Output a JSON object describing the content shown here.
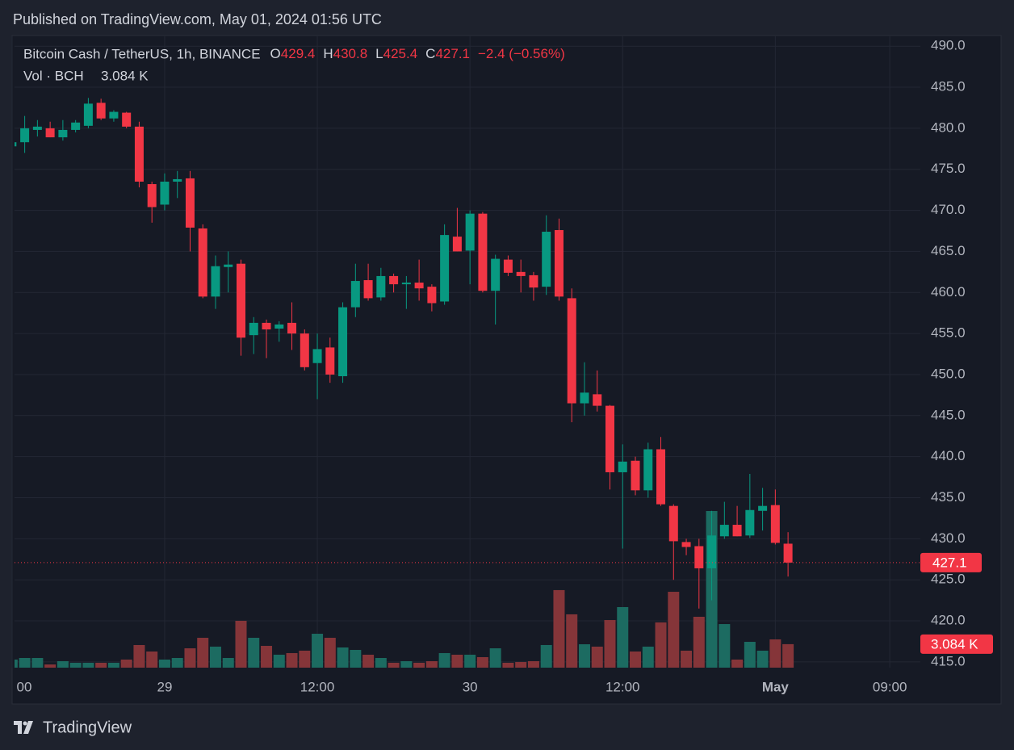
{
  "published": "Published on TradingView.com, May 01, 2024 01:56 UTC",
  "brand": "TradingView",
  "chart_data": {
    "type": "candlestick",
    "symbol": "Bitcoin Cash / TetherUS, 1h, BINANCE",
    "ohlc_legend": [
      {
        "label": "O",
        "value": 429.4
      },
      {
        "label": "H",
        "value": 430.8
      },
      {
        "label": "L",
        "value": 425.4
      },
      {
        "label": "C",
        "value": 427.1
      }
    ],
    "change": "−2.4 (−0.56%)",
    "volume_legend": {
      "label": "Vol · BCH",
      "value": 3084,
      "value_label": "3.084 K"
    },
    "last_price": 427.1,
    "up_color": "#089981",
    "down_color": "#f23645",
    "volume_up_color": "#1c6b61",
    "volume_down_color": "#853539",
    "open": [
      477.8,
      478.3,
      479.8,
      480.0,
      478.9,
      479.8,
      480.3,
      483.1,
      481.2,
      481.9,
      480.2,
      473.2,
      470.7,
      473.5,
      473.9,
      467.8,
      459.5,
      463.1,
      463.5,
      454.8,
      456.3,
      455.6,
      456.3,
      455.0,
      451.4,
      453.3,
      449.8,
      458.2,
      461.5,
      459.4,
      462.0,
      461.0,
      461.2,
      460.7,
      458.9,
      466.8,
      465.1,
      469.6,
      460.2,
      464.0,
      462.5,
      462.1,
      460.7,
      467.6,
      459.3,
      446.5,
      447.6,
      446.2,
      438.1,
      439.5,
      435.9,
      440.9,
      434.0,
      429.6,
      429.1,
      426.4,
      430.3,
      431.7,
      430.4,
      433.4,
      434.1,
      429.4
    ],
    "high": [
      478.5,
      481.5,
      481.0,
      480.8,
      481.0,
      481.0,
      483.7,
      483.6,
      482.2,
      482.0,
      480.8,
      473.5,
      474.5,
      474.8,
      474.8,
      468.3,
      464.5,
      465.0,
      464.0,
      457.0,
      456.7,
      456.5,
      458.8,
      455.5,
      455.0,
      454.5,
      458.8,
      463.5,
      463.5,
      463.0,
      462.3,
      462.0,
      464.0,
      461.0,
      468.3,
      470.3,
      470.0,
      469.8,
      464.6,
      464.5,
      464.0,
      462.5,
      469.4,
      469.0,
      460.5,
      451.5,
      450.5,
      446.3,
      441.5,
      440.0,
      441.7,
      442.4,
      434.2,
      430.0,
      430.0,
      433.4,
      434.5,
      434.0,
      437.9,
      436.2,
      436.0,
      430.8
    ],
    "low": [
      477.5,
      477.0,
      479.0,
      478.9,
      478.5,
      479.5,
      480.0,
      481.0,
      480.8,
      480.0,
      472.8,
      468.5,
      470.0,
      471.5,
      465.0,
      459.3,
      458.0,
      460.0,
      452.3,
      452.5,
      452.0,
      454.0,
      453.0,
      450.5,
      447.0,
      449.0,
      449.0,
      457.0,
      459.0,
      459.0,
      460.0,
      458.0,
      459.0,
      457.7,
      458.5,
      465.0,
      461.0,
      460.0,
      456.1,
      462.0,
      460.0,
      459.0,
      459.7,
      459.0,
      444.2,
      445.0,
      445.5,
      436.0,
      428.8,
      435.3,
      435.0,
      434.0,
      425.0,
      428.0,
      421.5,
      422.5,
      430.0,
      430.3,
      430.1,
      431.0,
      429.3,
      425.4
    ],
    "close": [
      478.3,
      480.0,
      480.2,
      478.9,
      479.8,
      480.7,
      483.0,
      481.2,
      482.0,
      480.2,
      473.5,
      470.4,
      473.5,
      473.8,
      467.9,
      459.5,
      463.2,
      463.4,
      454.5,
      456.3,
      455.5,
      456.1,
      455.0,
      450.9,
      453.1,
      450.0,
      458.2,
      461.4,
      459.3,
      462.0,
      461.0,
      461.2,
      460.5,
      458.7,
      467.0,
      465.0,
      469.6,
      460.2,
      464.1,
      462.4,
      462.0,
      460.6,
      467.4,
      459.5,
      446.5,
      447.8,
      446.2,
      438.1,
      439.4,
      435.9,
      440.9,
      434.2,
      429.7,
      429.0,
      426.4,
      430.4,
      431.7,
      430.3,
      433.5,
      434.0,
      429.5,
      427.1
    ],
    "volume": [
      1060,
      1270,
      1270,
      420,
      850,
      640,
      640,
      640,
      640,
      1060,
      2970,
      2120,
      1060,
      1270,
      2540,
      3920,
      2760,
      1270,
      6150,
      3920,
      2860,
      1700,
      1910,
      2230,
      4450,
      3920,
      2650,
      2330,
      1700,
      1270,
      640,
      850,
      640,
      850,
      1910,
      1700,
      1700,
      1380,
      2540,
      640,
      740,
      850,
      2970,
      10180,
      7000,
      3070,
      2760,
      6250,
      7950,
      2120,
      2760,
      5940,
      9960,
      2230,
      6680,
      20560,
      5720,
      1060,
      3390,
      2230,
      3710,
      3084
    ],
    "xlim": [
      0.2,
      71.4
    ],
    "xticks": [
      {
        "value": 0,
        "label": "00"
      },
      {
        "value": 12,
        "label": "29"
      },
      {
        "value": 24,
        "label": "12:00"
      },
      {
        "value": 36,
        "label": "30"
      },
      {
        "value": 48,
        "label": "12:00"
      },
      {
        "value": 60,
        "label": "May",
        "bold": true
      },
      {
        "value": 69,
        "label": "09:00"
      }
    ],
    "ylim": [
      414.3,
      491.2
    ],
    "yticks": [
      {
        "value": 415,
        "label": "415.0"
      },
      {
        "value": 420,
        "label": "420.0"
      },
      {
        "value": 425,
        "label": "425.0"
      },
      {
        "value": 430,
        "label": "430.0"
      },
      {
        "value": 435,
        "label": "435.0"
      },
      {
        "value": 440,
        "label": "440.0"
      },
      {
        "value": 445,
        "label": "445.0"
      },
      {
        "value": 450,
        "label": "450.0"
      },
      {
        "value": 455,
        "label": "455.0"
      },
      {
        "value": 460,
        "label": "460.0"
      },
      {
        "value": 465,
        "label": "465.0"
      },
      {
        "value": 470,
        "label": "470.0"
      },
      {
        "value": 475,
        "label": "475.0"
      },
      {
        "value": 480,
        "label": "480.0"
      },
      {
        "value": 485,
        "label": "485.0"
      },
      {
        "value": 490,
        "label": "490.0"
      }
    ],
    "grid": true
  }
}
